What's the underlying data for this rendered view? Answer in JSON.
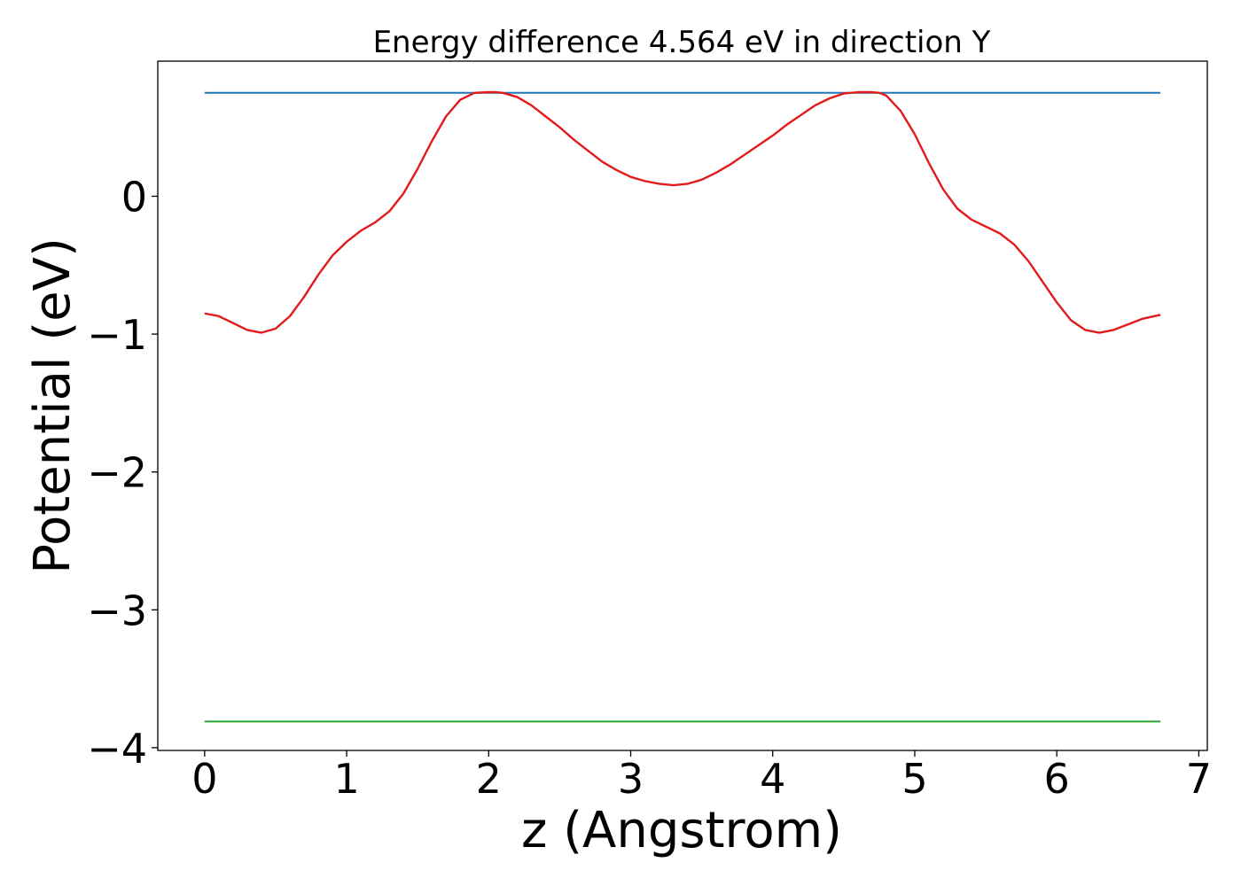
{
  "chart_data": {
    "type": "line",
    "title": "Energy difference 4.564 eV in direction Y",
    "xlabel": "z (Angstrom)",
    "ylabel": "Potential (eV)",
    "xlim": [
      -0.33,
      7.06
    ],
    "ylim": [
      -4.02,
      0.98
    ],
    "xticks": [
      0,
      1,
      2,
      3,
      4,
      5,
      6,
      7
    ],
    "yticks": [
      0,
      -1,
      -2,
      -3,
      -4
    ],
    "xtick_labels": [
      "0",
      "1",
      "2",
      "3",
      "4",
      "5",
      "6",
      "7"
    ],
    "ytick_labels": [
      "0",
      "−1",
      "−2",
      "−3",
      "−4"
    ],
    "grid": false,
    "series": [
      {
        "color": "#1f77b4",
        "x": [
          0,
          6.73
        ],
        "y": [
          0.75,
          0.75
        ]
      },
      {
        "color": "#2ca02c",
        "x": [
          0,
          6.73
        ],
        "y": [
          -3.81,
          -3.81
        ]
      },
      {
        "color": "#e31a1c",
        "x": [
          0.0,
          0.1,
          0.2,
          0.3,
          0.4,
          0.5,
          0.6,
          0.7,
          0.8,
          0.9,
          1.0,
          1.1,
          1.2,
          1.3,
          1.4,
          1.5,
          1.6,
          1.7,
          1.8,
          1.9,
          2.0,
          2.05,
          2.1,
          2.2,
          2.3,
          2.4,
          2.5,
          2.6,
          2.7,
          2.8,
          2.9,
          3.0,
          3.1,
          3.2,
          3.3,
          3.4,
          3.5,
          3.6,
          3.7,
          3.8,
          3.9,
          4.0,
          4.1,
          4.2,
          4.3,
          4.4,
          4.5,
          4.6,
          4.7,
          4.75,
          4.8,
          4.9,
          5.0,
          5.1,
          5.2,
          5.3,
          5.4,
          5.5,
          5.6,
          5.7,
          5.8,
          5.9,
          6.0,
          6.1,
          6.2,
          6.3,
          6.4,
          6.5,
          6.6,
          6.73
        ],
        "y": [
          -0.85,
          -0.87,
          -0.92,
          -0.97,
          -0.99,
          -0.96,
          -0.87,
          -0.73,
          -0.57,
          -0.43,
          -0.33,
          -0.25,
          -0.19,
          -0.11,
          0.02,
          0.2,
          0.4,
          0.58,
          0.7,
          0.75,
          0.755,
          0.755,
          0.75,
          0.72,
          0.66,
          0.58,
          0.5,
          0.41,
          0.33,
          0.25,
          0.19,
          0.14,
          0.11,
          0.09,
          0.08,
          0.09,
          0.12,
          0.17,
          0.23,
          0.3,
          0.37,
          0.44,
          0.52,
          0.59,
          0.66,
          0.71,
          0.745,
          0.755,
          0.755,
          0.75,
          0.73,
          0.62,
          0.45,
          0.24,
          0.05,
          -0.09,
          -0.17,
          -0.22,
          -0.27,
          -0.35,
          -0.47,
          -0.62,
          -0.77,
          -0.9,
          -0.97,
          -0.99,
          -0.97,
          -0.93,
          -0.89,
          -0.86
        ]
      }
    ]
  }
}
